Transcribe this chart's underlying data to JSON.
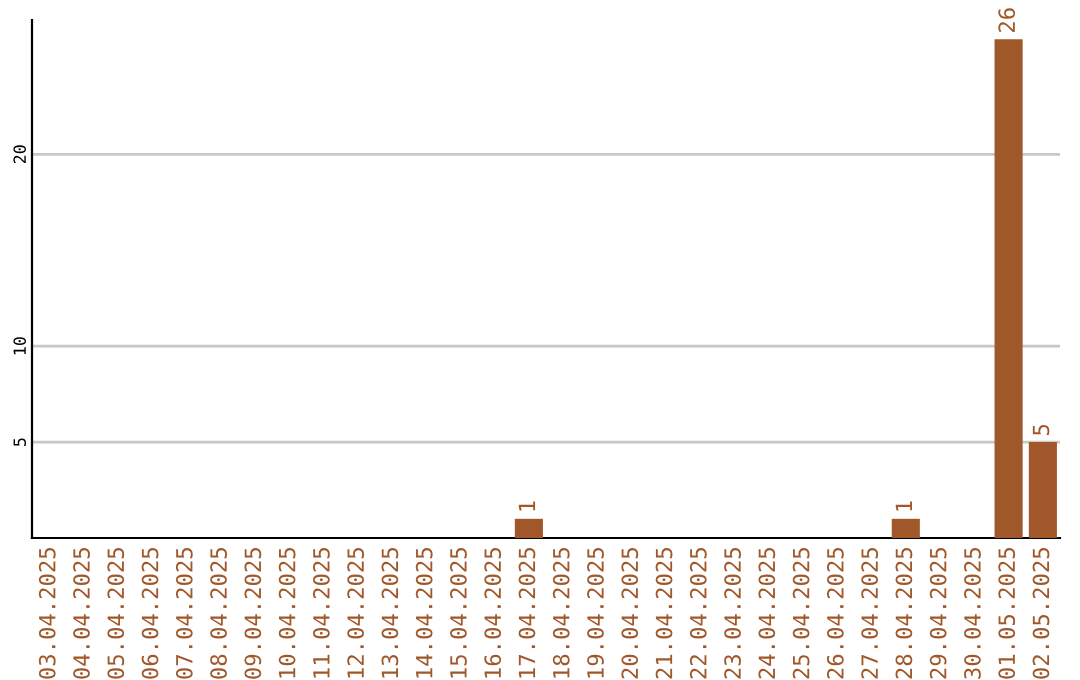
{
  "chart_data": {
    "type": "bar",
    "categories": [
      "03.04.2025",
      "04.04.2025",
      "05.04.2025",
      "06.04.2025",
      "07.04.2025",
      "08.04.2025",
      "09.04.2025",
      "10.04.2025",
      "11.04.2025",
      "12.04.2025",
      "13.04.2025",
      "14.04.2025",
      "15.04.2025",
      "16.04.2025",
      "17.04.2025",
      "18.04.2025",
      "19.04.2025",
      "20.04.2025",
      "21.04.2025",
      "22.04.2025",
      "23.04.2025",
      "24.04.2025",
      "25.04.2025",
      "26.04.2025",
      "27.04.2025",
      "28.04.2025",
      "29.04.2025",
      "30.04.2025",
      "01.05.2025",
      "02.05.2025"
    ],
    "values": [
      null,
      null,
      null,
      null,
      null,
      null,
      null,
      null,
      null,
      null,
      null,
      null,
      null,
      null,
      1,
      null,
      null,
      null,
      null,
      null,
      null,
      null,
      null,
      null,
      null,
      1,
      null,
      null,
      26,
      5
    ],
    "color": "#a0582a",
    "data_labels": true,
    "ylim": [
      0,
      27
    ],
    "yticks": [
      5,
      10,
      20
    ],
    "grid": "y"
  }
}
